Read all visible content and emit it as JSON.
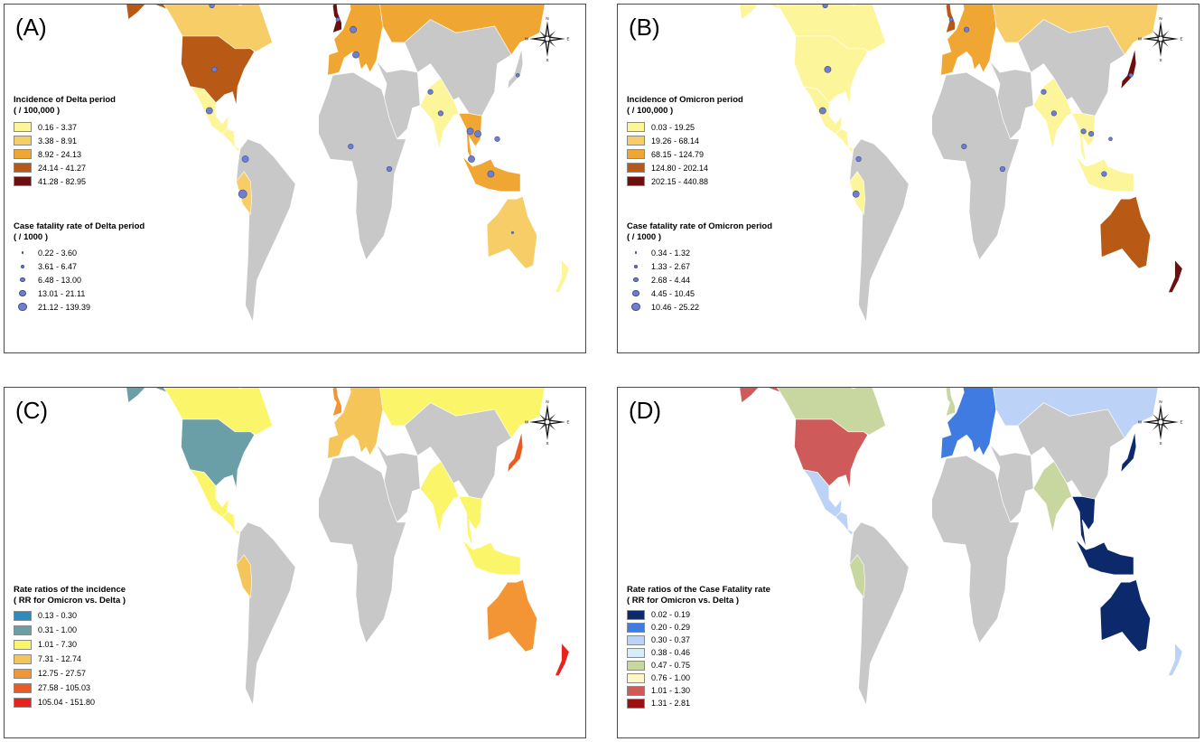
{
  "compass": {
    "n": "N",
    "s": "S",
    "e": "E",
    "w": "W"
  },
  "colors": {
    "no_data": "#c8c8c8",
    "border": "#ffffff",
    "ocean": "#ffffff",
    "fatality_dot_fill": "#6f7fcc"
  },
  "panels": [
    {
      "id": "A",
      "label": "(A)",
      "legend_title": [
        "Incidence of Delta period",
        "( / 100,000 )"
      ],
      "legend_items": [
        {
          "label": "0.16 - 3.37",
          "color": "#fdf59a"
        },
        {
          "label": "3.38 - 8.91",
          "color": "#f6cd66"
        },
        {
          "label": "8.92 - 24.13",
          "color": "#f0a633"
        },
        {
          "label": "24.14 - 41.27",
          "color": "#b85a16"
        },
        {
          "label": "41.28 - 82.95",
          "color": "#6b0f0f"
        }
      ],
      "dot_title": [
        "Case fatality rate of Delta period",
        "( / 1000 )"
      ],
      "dot_items": [
        "0.22 - 3.60",
        "3.61 - 6.47",
        "6.48 - 13.00",
        "13.01 - 21.11",
        "21.12 - 139.39"
      ],
      "regions": {
        "north_america": 1,
        "alaska": 3,
        "usa": 3,
        "mexico": 0,
        "greenland": -1,
        "south_america": -1,
        "peru": 1,
        "europe": 2,
        "uk": 4,
        "russia": 2,
        "africa": -1,
        "middle_east": -1,
        "india": 0,
        "china": -1,
        "se_asia": 2,
        "japan": -1,
        "australia": 1,
        "new_zealand": 0,
        "indonesia": 2
      },
      "fatality_dots": [
        {
          "name": "canada",
          "lon": -100,
          "lat": 58,
          "cls": 2
        },
        {
          "name": "usa",
          "lon": -98,
          "lat": 38,
          "cls": 2
        },
        {
          "name": "mexico",
          "lon": -102,
          "lat": 23,
          "cls": 3
        },
        {
          "name": "colombia",
          "lon": -74,
          "lat": 4,
          "cls": 3
        },
        {
          "name": "peru",
          "lon": -76,
          "lat": -10,
          "cls": 4
        },
        {
          "name": "uk",
          "lon": -2,
          "lat": 54,
          "cls": 1
        },
        {
          "name": "germany",
          "lon": 10,
          "lat": 51,
          "cls": 3
        },
        {
          "name": "italy",
          "lon": 12,
          "lat": 43,
          "cls": 3
        },
        {
          "name": "russia",
          "lon": 90,
          "lat": 60,
          "cls": 3
        },
        {
          "name": "india",
          "lon": 78,
          "lat": 22,
          "cls": 2
        },
        {
          "name": "nigeria",
          "lon": 8,
          "lat": 9,
          "cls": 2
        },
        {
          "name": "kenya",
          "lon": 38,
          "lat": 0,
          "cls": 2
        },
        {
          "name": "thailand",
          "lon": 101,
          "lat": 15,
          "cls": 3
        },
        {
          "name": "vietnam",
          "lon": 107,
          "lat": 14,
          "cls": 3
        },
        {
          "name": "malaysia",
          "lon": 102,
          "lat": 4,
          "cls": 3
        },
        {
          "name": "indonesia",
          "lon": 117,
          "lat": -2,
          "cls": 3
        },
        {
          "name": "philippines",
          "lon": 122,
          "lat": 12,
          "cls": 2
        },
        {
          "name": "japan",
          "lon": 138,
          "lat": 36,
          "cls": 1
        },
        {
          "name": "australia",
          "lon": 134,
          "lat": -25,
          "cls": 0
        },
        {
          "name": "pakistan",
          "lon": 70,
          "lat": 30,
          "cls": 2
        }
      ]
    },
    {
      "id": "B",
      "label": "(B)",
      "legend_title": [
        "Incidence of Omicron period",
        "( / 100,000 )"
      ],
      "legend_items": [
        {
          "label": "0.03 - 19.25",
          "color": "#fdf59a"
        },
        {
          "label": "19.26 - 68.14",
          "color": "#f6cd66"
        },
        {
          "label": "68.15 - 124.79",
          "color": "#f0a633"
        },
        {
          "label": "124.80 - 202.14",
          "color": "#b85a16"
        },
        {
          "label": "202.15 - 440.88",
          "color": "#6b0f0f"
        }
      ],
      "dot_title": [
        "Case fatality rate of Omicron period",
        "( / 1000 )"
      ],
      "dot_items": [
        "0.34 - 1.32",
        "1.33 - 2.67",
        "2.68 - 4.44",
        "4.45 - 10.45",
        "10.46 - 25.22"
      ],
      "regions": {
        "north_america": 0,
        "alaska": 0,
        "usa": 0,
        "mexico": 0,
        "greenland": -1,
        "south_america": -1,
        "peru": 0,
        "europe": 2,
        "uk": 3,
        "russia": 1,
        "africa": -1,
        "middle_east": -1,
        "india": 0,
        "china": -1,
        "se_asia": 0,
        "japan": 4,
        "australia": 3,
        "new_zealand": 4,
        "indonesia": 0
      },
      "fatality_dots": [
        {
          "name": "canada",
          "lon": -100,
          "lat": 58,
          "cls": 2
        },
        {
          "name": "usa",
          "lon": -98,
          "lat": 38,
          "cls": 3
        },
        {
          "name": "mexico",
          "lon": -102,
          "lat": 23,
          "cls": 3
        },
        {
          "name": "colombia",
          "lon": -74,
          "lat": 4,
          "cls": 2
        },
        {
          "name": "peru",
          "lon": -76,
          "lat": -10,
          "cls": 3
        },
        {
          "name": "uk",
          "lon": -2,
          "lat": 54,
          "cls": 1
        },
        {
          "name": "germany",
          "lon": 10,
          "lat": 51,
          "cls": 2
        },
        {
          "name": "russia",
          "lon": 90,
          "lat": 60,
          "cls": 2
        },
        {
          "name": "india",
          "lon": 78,
          "lat": 22,
          "cls": 2
        },
        {
          "name": "nigeria",
          "lon": 8,
          "lat": 9,
          "cls": 2
        },
        {
          "name": "kenya",
          "lon": 38,
          "lat": 0,
          "cls": 2
        },
        {
          "name": "thailand",
          "lon": 101,
          "lat": 15,
          "cls": 2
        },
        {
          "name": "vietnam",
          "lon": 107,
          "lat": 14,
          "cls": 2
        },
        {
          "name": "indonesia",
          "lon": 117,
          "lat": -2,
          "cls": 2
        },
        {
          "name": "philippines",
          "lon": 122,
          "lat": 12,
          "cls": 1
        },
        {
          "name": "japan",
          "lon": 138,
          "lat": 36,
          "cls": 1
        },
        {
          "name": "pakistan",
          "lon": 70,
          "lat": 30,
          "cls": 2
        }
      ]
    },
    {
      "id": "C",
      "label": "(C)",
      "legend_title": [
        "Rate ratios of the incidence",
        "( RR for Omicron vs. Delta )"
      ],
      "legend_items": [
        {
          "label": "0.13 - 0.30",
          "color": "#2b8cbe"
        },
        {
          "label": "0.31 - 1.00",
          "color": "#6a9fa8"
        },
        {
          "label": "1.01 - 7.30",
          "color": "#fbf56a"
        },
        {
          "label": "7.31 - 12.74",
          "color": "#f6c55a"
        },
        {
          "label": "12.75 - 27.57",
          "color": "#f39535"
        },
        {
          "label": "27.58 - 105.03",
          "color": "#ec5a22"
        },
        {
          "label": "105.04 - 151.80",
          "color": "#e8231e"
        }
      ],
      "dot_title": [],
      "dot_items": [],
      "regions": {
        "north_america": 2,
        "alaska": 1,
        "usa": 1,
        "mexico": 2,
        "greenland": -1,
        "south_america": -1,
        "peru": 3,
        "europe": 3,
        "uk": 4,
        "russia": 2,
        "africa": -1,
        "middle_east": -1,
        "india": 2,
        "china": -1,
        "se_asia": 2,
        "japan": 5,
        "australia": 4,
        "new_zealand": 6,
        "indonesia": 2
      },
      "fatality_dots": []
    },
    {
      "id": "D",
      "label": "(D)",
      "legend_title": [
        "Rate ratios  of  the  Case Fatality rate",
        "( RR for Omicron vs. Delta )"
      ],
      "legend_items": [
        {
          "label": "0.02 - 0.19",
          "color": "#0c2a6b"
        },
        {
          "label": "0.20 - 0.29",
          "color": "#3f7be0"
        },
        {
          "label": "0.30 - 0.37",
          "color": "#bcd2f7"
        },
        {
          "label": "0.38 - 0.46",
          "color": "#d9ecf9"
        },
        {
          "label": "0.47 - 0.75",
          "color": "#c8d6a0"
        },
        {
          "label": "0.76 - 1.00",
          "color": "#fdf6c8"
        },
        {
          "label": "1.01 - 1.30",
          "color": "#cf5a5a"
        },
        {
          "label": "1.31 - 2.81",
          "color": "#9b1010"
        }
      ],
      "dot_title": [],
      "dot_items": [],
      "regions": {
        "north_america": 4,
        "alaska": 6,
        "usa": 6,
        "mexico": 2,
        "greenland": -1,
        "south_america": -1,
        "peru": 4,
        "europe": 1,
        "uk": 4,
        "russia": 2,
        "africa": -1,
        "middle_east": -1,
        "india": 4,
        "china": -1,
        "se_asia": 0,
        "japan": 0,
        "australia": 0,
        "new_zealand": 2,
        "indonesia": 0
      },
      "fatality_dots": []
    }
  ]
}
